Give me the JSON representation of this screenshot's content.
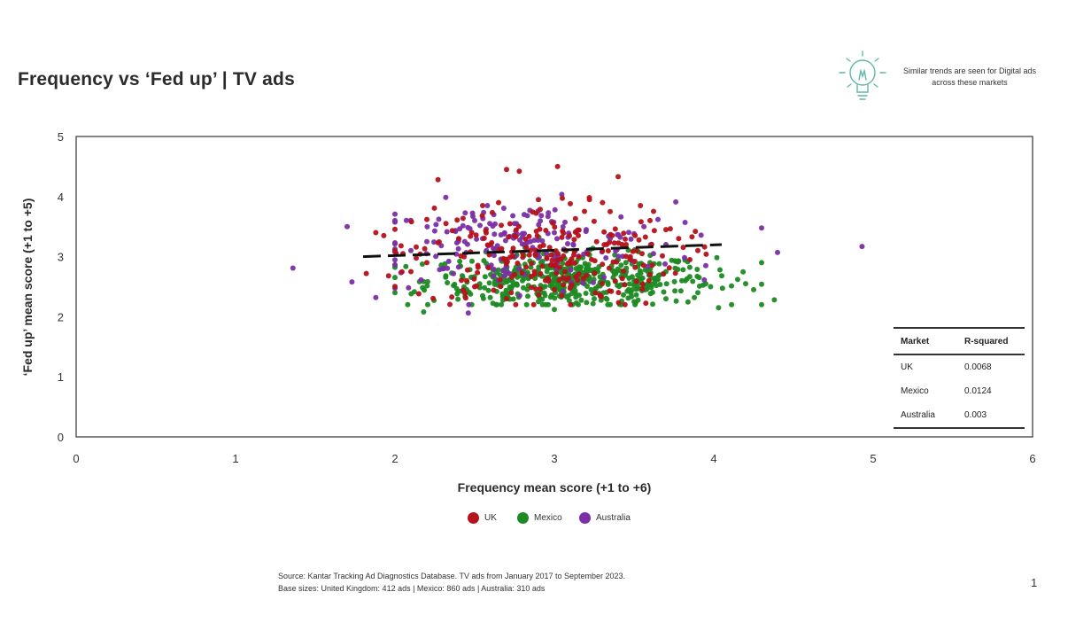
{
  "title": "Frequency vs ‘Fed up’ | TV ads",
  "tip": {
    "icon": "lightbulb-icon",
    "text": "Similar trends are seen for Digital ads across these markets"
  },
  "chart_data": {
    "type": "scatter",
    "title": "",
    "xlabel": "Frequency mean score (+1 to +6)",
    "ylabel": "‘Fed up’ mean score (+1 to +5)",
    "xlim": [
      0,
      6
    ],
    "ylim": [
      0,
      5
    ],
    "xticks": [
      "0",
      "1",
      "2",
      "3",
      "4",
      "5",
      "6"
    ],
    "yticks": [
      "0",
      "1",
      "2",
      "3",
      "4",
      "5"
    ],
    "grid": false,
    "legend_position": "bottom",
    "series": [
      {
        "name": "UK",
        "color": "#b5121b",
        "n": 412,
        "center": [
          2.95,
          3.0
        ],
        "spread": [
          0.42,
          0.42
        ],
        "points": [
          [
            2.27,
            4.28
          ],
          [
            2.7,
            4.45
          ],
          [
            2.78,
            4.42
          ],
          [
            3.02,
            4.5
          ],
          [
            3.4,
            4.33
          ],
          [
            2.2,
            3.62
          ],
          [
            1.88,
            3.4
          ],
          [
            1.93,
            3.35
          ],
          [
            1.82,
            2.72
          ],
          [
            1.96,
            2.68
          ],
          [
            2.05,
            3.05
          ],
          [
            2.32,
            3.55
          ],
          [
            2.55,
            3.85
          ],
          [
            2.65,
            3.9
          ],
          [
            2.9,
            3.95
          ],
          [
            3.05,
            3.97
          ],
          [
            3.1,
            3.88
          ],
          [
            3.22,
            3.95
          ],
          [
            3.35,
            3.75
          ],
          [
            3.6,
            3.6
          ],
          [
            3.7,
            3.45
          ],
          [
            3.78,
            3.3
          ],
          [
            3.85,
            2.95
          ],
          [
            3.6,
            2.7
          ],
          [
            2.45,
            2.6
          ],
          [
            2.5,
            2.5
          ],
          [
            2.7,
            2.3
          ],
          [
            3.0,
            2.45
          ],
          [
            3.3,
            2.55
          ],
          [
            3.45,
            3.2
          ],
          [
            2.6,
            3.2
          ],
          [
            2.85,
            3.1
          ],
          [
            3.15,
            3.35
          ],
          [
            3.0,
            2.85
          ],
          [
            2.75,
            2.7
          ],
          [
            2.4,
            3.3
          ],
          [
            2.2,
            2.9
          ],
          [
            2.1,
            2.75
          ],
          [
            3.55,
            3.05
          ],
          [
            3.9,
            3.1
          ]
        ]
      },
      {
        "name": "Mexico",
        "color": "#1e8a23",
        "n": 860,
        "center": [
          3.1,
          2.6
        ],
        "spread": [
          0.45,
          0.22
        ],
        "points": [
          [
            2.18,
            2.08
          ],
          [
            4.03,
            2.15
          ],
          [
            4.38,
            2.28
          ],
          [
            4.3,
            2.9
          ],
          [
            4.2,
            2.55
          ],
          [
            4.25,
            2.45
          ],
          [
            4.15,
            2.62
          ],
          [
            4.05,
            2.68
          ],
          [
            3.98,
            2.5
          ],
          [
            3.9,
            2.4
          ],
          [
            3.7,
            2.3
          ],
          [
            3.5,
            2.25
          ],
          [
            3.35,
            2.2
          ],
          [
            3.15,
            2.2
          ],
          [
            2.9,
            2.25
          ],
          [
            2.7,
            2.3
          ],
          [
            2.55,
            2.35
          ],
          [
            2.45,
            2.45
          ],
          [
            3.0,
            2.12
          ],
          [
            3.25,
            2.3
          ],
          [
            3.8,
            2.6
          ],
          [
            3.6,
            2.9
          ],
          [
            3.4,
            2.95
          ],
          [
            3.2,
            2.8
          ],
          [
            3.0,
            2.7
          ],
          [
            2.8,
            2.6
          ],
          [
            2.6,
            2.7
          ],
          [
            3.1,
            2.5
          ],
          [
            3.5,
            2.6
          ],
          [
            3.7,
            2.75
          ]
        ]
      },
      {
        "name": "Australia",
        "color": "#7b2fa6",
        "n": 310,
        "center": [
          2.75,
          3.2
        ],
        "spread": [
          0.5,
          0.35
        ],
        "points": [
          [
            1.36,
            2.81
          ],
          [
            1.7,
            3.5
          ],
          [
            1.73,
            2.58
          ],
          [
            1.88,
            2.32
          ],
          [
            4.93,
            3.17
          ],
          [
            4.4,
            3.07
          ],
          [
            3.82,
            3.57
          ],
          [
            3.65,
            3.62
          ],
          [
            2.46,
            2.06
          ],
          [
            2.1,
            3.1
          ],
          [
            2.2,
            3.25
          ],
          [
            2.38,
            3.42
          ],
          [
            2.5,
            3.6
          ],
          [
            2.58,
            3.85
          ],
          [
            2.62,
            3.7
          ],
          [
            2.75,
            3.55
          ],
          [
            3.0,
            3.4
          ],
          [
            3.2,
            3.45
          ],
          [
            3.35,
            3.3
          ],
          [
            3.5,
            3.38
          ],
          [
            3.7,
            3.2
          ],
          [
            3.95,
            2.85
          ],
          [
            2.3,
            2.8
          ],
          [
            2.55,
            3.3
          ],
          [
            2.85,
            3.25
          ]
        ]
      }
    ],
    "trendline": {
      "style": "dashed",
      "color": "#111111",
      "x": [
        1.8,
        4.05
      ],
      "y": [
        3.0,
        3.2
      ]
    }
  },
  "r_squared_table": {
    "headers": [
      "Market",
      "R-squared"
    ],
    "rows": [
      {
        "market": "UK",
        "value": "0.0068"
      },
      {
        "market": "Mexico",
        "value": "0.0124"
      },
      {
        "market": "Australia",
        "value": "0.003"
      }
    ]
  },
  "source": {
    "line1": "Source: Kantar Tracking Ad Diagnostics Database. TV ads from January 2017 to September 2023.",
    "line2": "Base sizes: United Kingdom: 412 ads | Mexico: 860 ads | Australia: 310 ads"
  },
  "page_number": "1"
}
